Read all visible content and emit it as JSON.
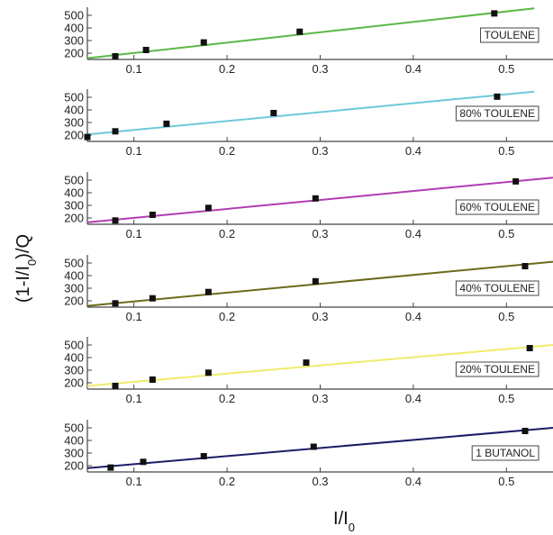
{
  "chart_data": {
    "type": "scatter",
    "x_range": [
      0.05,
      0.55
    ],
    "y_range": [
      150,
      550
    ],
    "x_ticks": [
      "0.1",
      "0.2",
      "0.3",
      "0.4",
      "0.5"
    ],
    "y_ticks": [
      "200",
      "300",
      "400",
      "500"
    ],
    "x_tick_values": [
      0.1,
      0.2,
      0.3,
      0.4,
      0.5
    ],
    "y_tick_values": [
      200,
      300,
      400,
      500
    ],
    "xlabel": {
      "main": "I/I",
      "sub": "0"
    },
    "ylabel": {
      "pre": "(1-I/I",
      "sub": "0",
      "post": ")/Q"
    },
    "legend_placement": "right",
    "grid": false,
    "panels": [
      {
        "name": "TOULENE",
        "color": "#5ab846",
        "points": [
          [
            0.08,
            175
          ],
          [
            0.113,
            225
          ],
          [
            0.175,
            285
          ],
          [
            0.278,
            370
          ],
          [
            0.487,
            515
          ]
        ],
        "fit": [
          [
            0.05,
            160
          ],
          [
            0.53,
            555
          ]
        ]
      },
      {
        "name": "80% TOULENE",
        "color": "#6fc8da",
        "points": [
          [
            0.05,
            185
          ],
          [
            0.08,
            230
          ],
          [
            0.135,
            290
          ],
          [
            0.25,
            375
          ],
          [
            0.49,
            505
          ]
        ],
        "fit": [
          [
            0.05,
            205
          ],
          [
            0.53,
            545
          ]
        ]
      },
      {
        "name": "60% TOULENE",
        "color": "#b23cb2",
        "points": [
          [
            0.08,
            180
          ],
          [
            0.12,
            225
          ],
          [
            0.18,
            280
          ],
          [
            0.295,
            355
          ],
          [
            0.51,
            490
          ]
        ],
        "fit": [
          [
            0.05,
            165
          ],
          [
            0.55,
            520
          ]
        ]
      },
      {
        "name": "40% TOULENE",
        "color": "#6b6a1a",
        "points": [
          [
            0.08,
            180
          ],
          [
            0.12,
            220
          ],
          [
            0.18,
            270
          ],
          [
            0.295,
            355
          ],
          [
            0.52,
            475
          ]
        ],
        "fit": [
          [
            0.05,
            160
          ],
          [
            0.55,
            510
          ]
        ]
      },
      {
        "name": "20% TOULENE",
        "color": "#f0ec6a",
        "points": [
          [
            0.08,
            175
          ],
          [
            0.12,
            225
          ],
          [
            0.18,
            280
          ],
          [
            0.285,
            360
          ],
          [
            0.525,
            475
          ]
        ],
        "fit": [
          [
            0.05,
            175
          ],
          [
            0.55,
            500
          ]
        ]
      },
      {
        "name": "1 BUTANOL",
        "color": "#1c1c66",
        "points": [
          [
            0.075,
            185
          ],
          [
            0.11,
            230
          ],
          [
            0.175,
            275
          ],
          [
            0.293,
            350
          ],
          [
            0.52,
            475
          ]
        ],
        "fit": [
          [
            0.05,
            180
          ],
          [
            0.55,
            500
          ]
        ]
      }
    ]
  }
}
